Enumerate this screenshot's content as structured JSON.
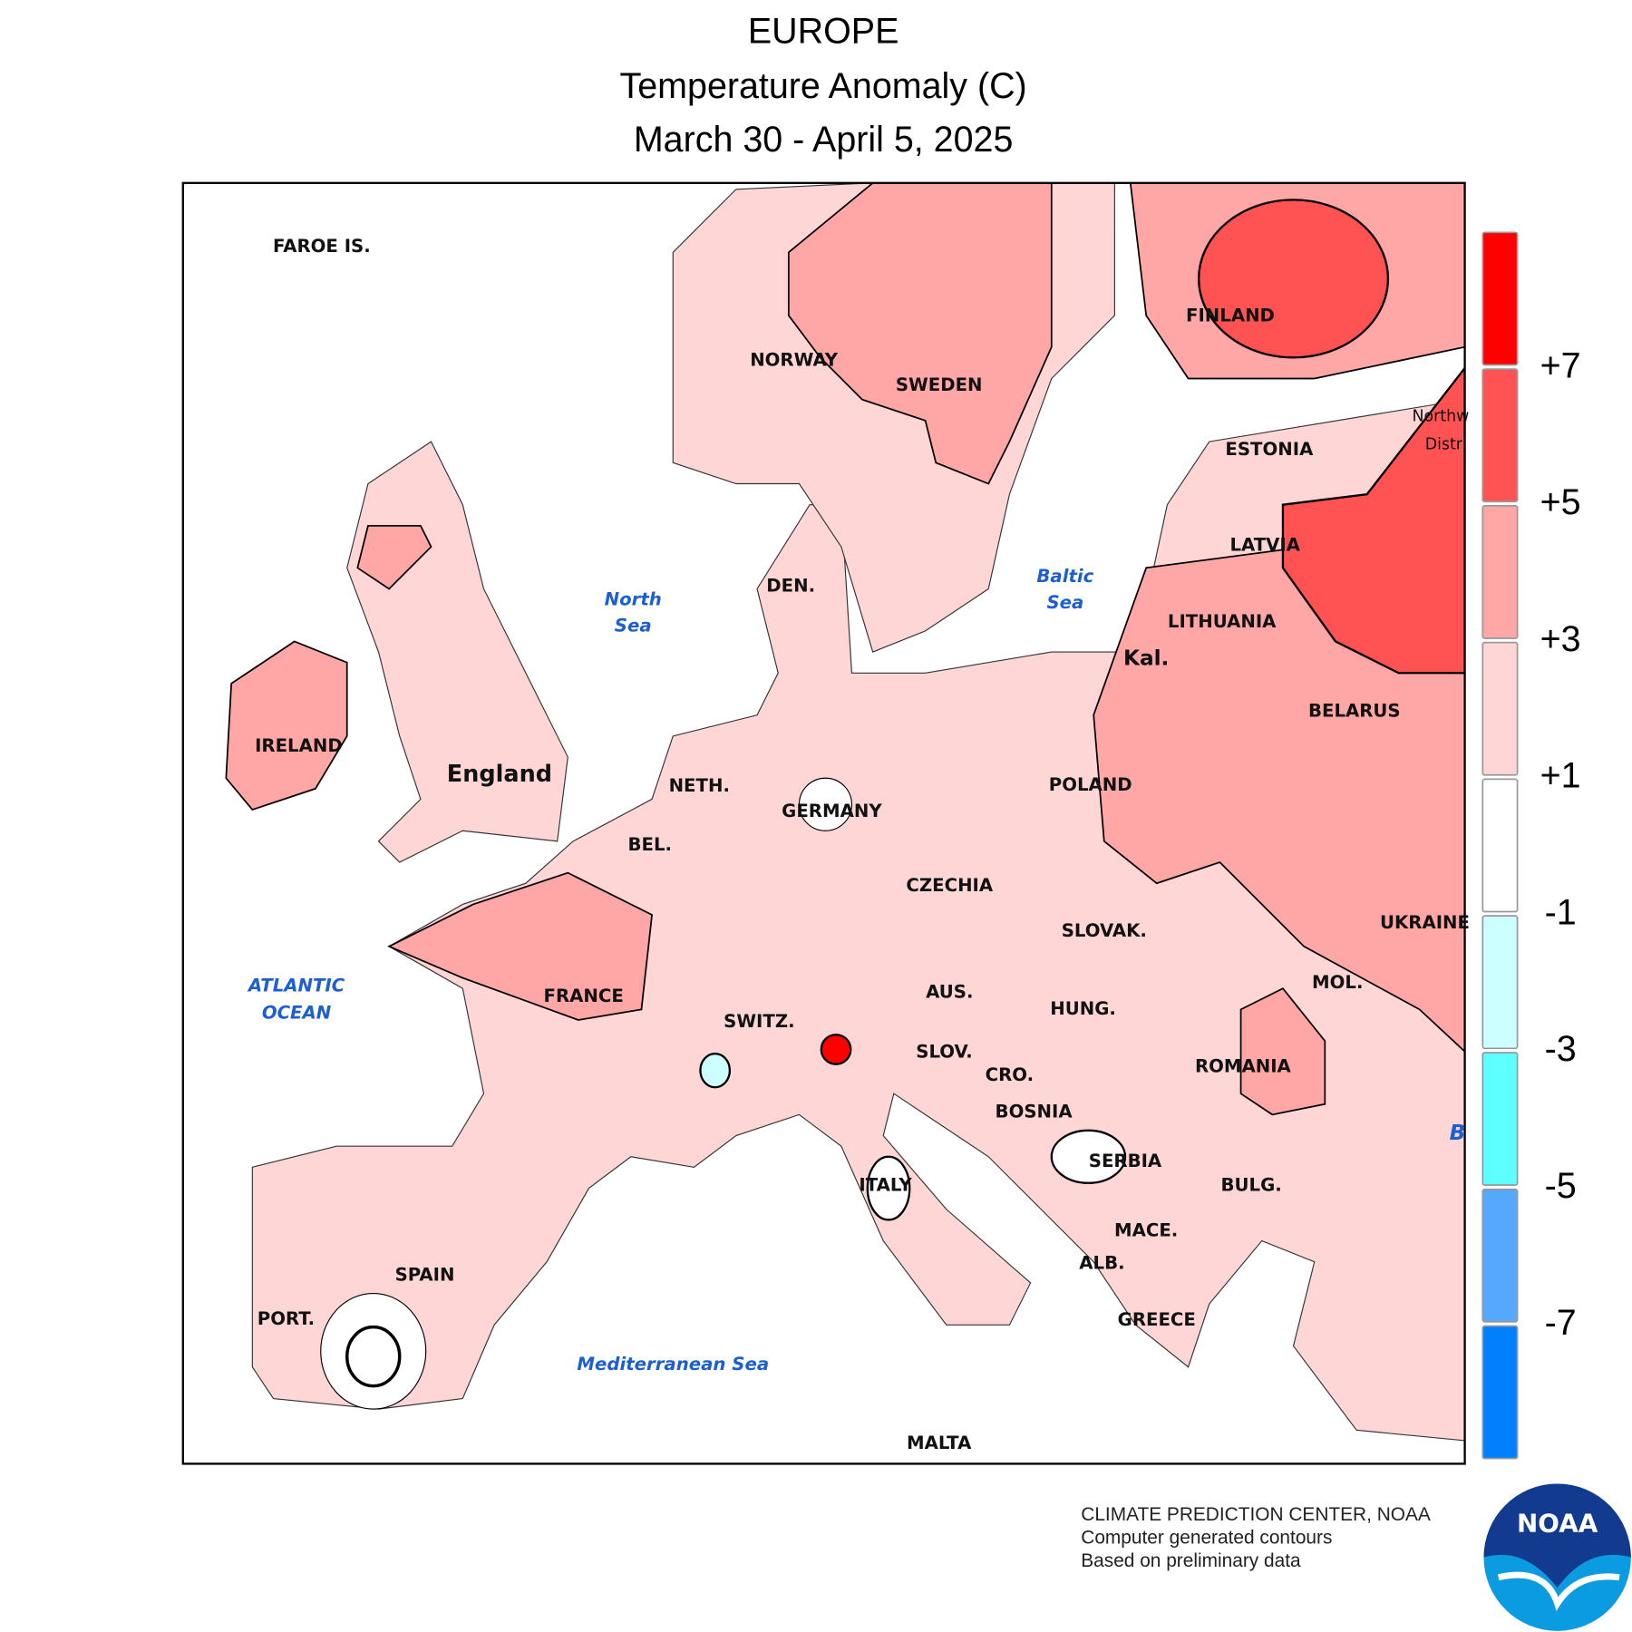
{
  "header": {
    "title": "EUROPE",
    "subtitle": "Temperature Anomaly (C)",
    "dates": "March 30 - April 5, 2025"
  },
  "map": {
    "country_labels": [
      "FAROE IS.",
      "NORWAY",
      "SWEDEN",
      "FINLAND",
      "ESTONIA",
      "LATVIA",
      "LITHUANIA",
      "Kal.",
      "BELARUS",
      "POLAND",
      "GERMANY",
      "NETH.",
      "BEL.",
      "DEN.",
      "IRELAND",
      "England",
      "FRANCE",
      "SWITZ.",
      "AUS.",
      "CZECHIA",
      "SLOVAK.",
      "HUNG.",
      "SLOV.",
      "CRO.",
      "BOSNIA",
      "SERBIA",
      "ROMANIA",
      "MOL.",
      "UKRAINE",
      "BULG.",
      "MACE.",
      "ALB.",
      "GREECE",
      "ITALY",
      "SPAIN",
      "PORT.",
      "MALTA",
      "Northw",
      "Distri"
    ],
    "sea_labels": [
      "North",
      "Sea",
      "Baltic",
      "Sea",
      "ATLANTIC",
      "OCEAN",
      "Mediterranean Sea",
      "B"
    ]
  },
  "legend": {
    "colors": [
      "#ff0000",
      "#ff5252",
      "#ffa6a6",
      "#ffd6d6",
      "#ffffff",
      "#ccffff",
      "#5effff",
      "#56a8ff",
      "#0080ff"
    ],
    "labels": [
      "+7",
      "+5",
      "+3",
      "+1",
      "-1",
      "-3",
      "-5",
      "-7"
    ]
  },
  "credits": {
    "lines": [
      "CLIMATE PREDICTION CENTER, NOAA",
      "Computer generated contours",
      "Based on preliminary data"
    ],
    "logo": "NOAA"
  }
}
